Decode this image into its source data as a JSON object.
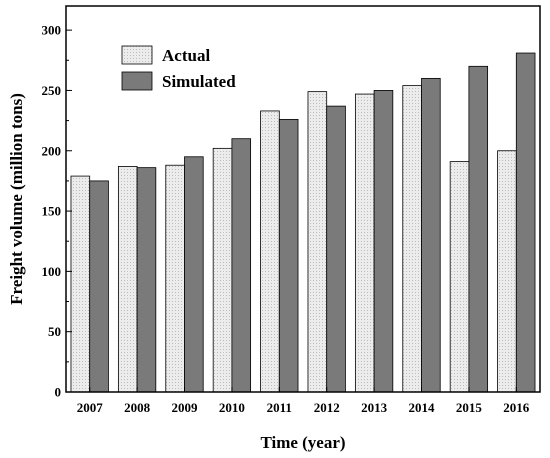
{
  "chart_data": {
    "type": "bar",
    "categories": [
      "2007",
      "2008",
      "2009",
      "2010",
      "2011",
      "2012",
      "2013",
      "2014",
      "2015",
      "2016"
    ],
    "series": [
      {
        "name": "Actual",
        "values": [
          179,
          187,
          188,
          202,
          233,
          249,
          247,
          254,
          191,
          200
        ],
        "color": "#e6e6e6"
      },
      {
        "name": "Simulated",
        "values": [
          175,
          186,
          195,
          210,
          226,
          237,
          250,
          260,
          270,
          281
        ],
        "color": "#7a7a7a"
      }
    ],
    "title": "",
    "xlabel": "Time (year)",
    "ylabel": "Freight volume (million tons)",
    "ylim": [
      0,
      320
    ],
    "yticks": [
      0,
      50,
      100,
      150,
      200,
      250,
      300
    ],
    "grid": false,
    "legend_position": "top-left"
  }
}
